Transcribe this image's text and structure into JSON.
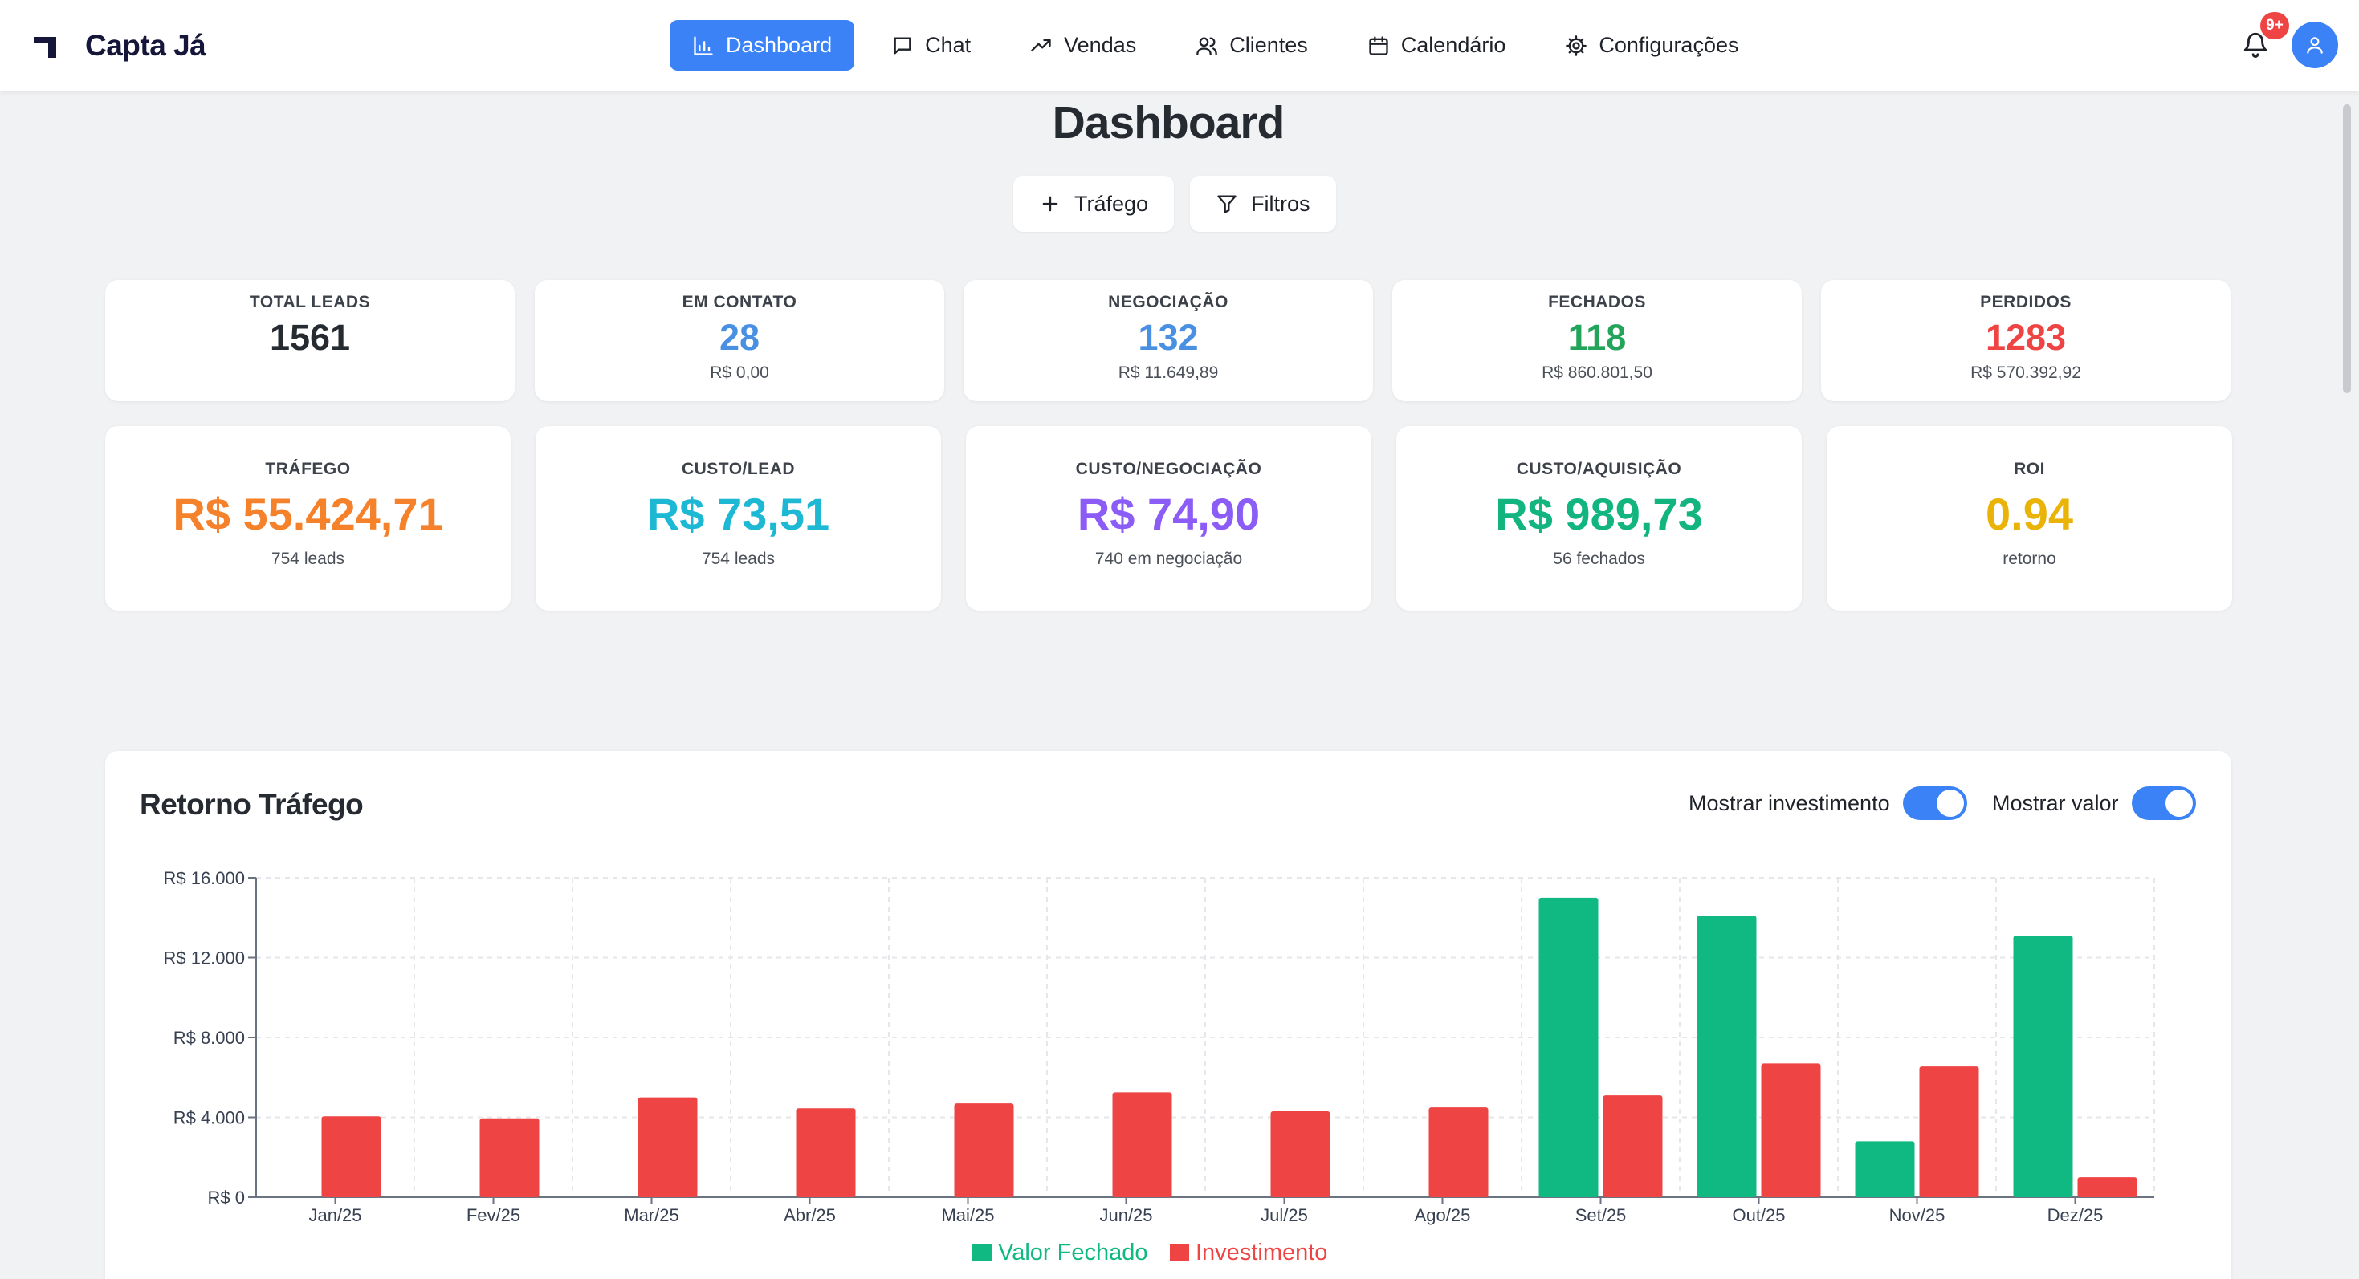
{
  "brand": {
    "name": "Capta Já"
  },
  "nav": {
    "items": [
      {
        "label": "Dashboard",
        "icon": "bar-chart-icon",
        "active": true
      },
      {
        "label": "Chat",
        "icon": "chat-icon"
      },
      {
        "label": "Vendas",
        "icon": "trending-up-icon"
      },
      {
        "label": "Clientes",
        "icon": "users-icon"
      },
      {
        "label": "Calendário",
        "icon": "calendar-icon"
      },
      {
        "label": "Configurações",
        "icon": "gear-icon"
      }
    ],
    "notifications": "9+"
  },
  "page": {
    "title": "Dashboard",
    "actions": {
      "traffic": "Tráfego",
      "filters": "Filtros"
    }
  },
  "stats": [
    {
      "label": "TOTAL LEADS",
      "value": "1561",
      "sub": "",
      "color": "#262a31"
    },
    {
      "label": "EM CONTATO",
      "value": "28",
      "sub": "R$ 0,00",
      "color": "#4a90e2"
    },
    {
      "label": "NEGOCIAÇÃO",
      "value": "132",
      "sub": "R$ 11.649,89",
      "color": "#4a90e2"
    },
    {
      "label": "FECHADOS",
      "value": "118",
      "sub": "R$ 860.801,50",
      "color": "#22a55b"
    },
    {
      "label": "PERDIDOS",
      "value": "1283",
      "sub": "R$ 570.392,92",
      "color": "#ef4444"
    }
  ],
  "metrics": [
    {
      "label": "TRÁFEGO",
      "value": "R$ 55.424,71",
      "sub": "754 leads",
      "color": "#f5812a"
    },
    {
      "label": "CUSTO/LEAD",
      "value": "R$ 73,51",
      "sub": "754 leads",
      "color": "#1cb8d4"
    },
    {
      "label": "CUSTO/NEGOCIAÇÃO",
      "value": "R$ 74,90",
      "sub": "740 em negociação",
      "color": "#8b5cf6"
    },
    {
      "label": "CUSTO/AQUISIÇÃO",
      "value": "R$ 989,73",
      "sub": "56 fechados",
      "color": "#12b57f"
    },
    {
      "label": "ROI",
      "value": "0.94",
      "sub": "retorno",
      "color": "#eab308"
    }
  ],
  "chart_panel": {
    "title": "Retorno Tráfego",
    "toggles": [
      {
        "label": "Mostrar investimento",
        "on": true
      },
      {
        "label": "Mostrar valor",
        "on": true
      }
    ]
  },
  "chart_data": {
    "type": "bar",
    "categories": [
      "Jan/25",
      "Fev/25",
      "Mar/25",
      "Abr/25",
      "Mai/25",
      "Jun/25",
      "Jul/25",
      "Ago/25",
      "Set/25",
      "Out/25",
      "Nov/25",
      "Dez/25"
    ],
    "series": [
      {
        "name": "Valor Fechado",
        "color": "#10b981",
        "values": [
          0,
          0,
          0,
          0,
          0,
          0,
          0,
          0,
          15000,
          14100,
          2800,
          13100
        ]
      },
      {
        "name": "Investimento",
        "color": "#ef4444",
        "values": [
          4050,
          3950,
          5000,
          4450,
          4700,
          5250,
          4300,
          4500,
          5100,
          6700,
          6550,
          1000
        ]
      }
    ],
    "yticks": [
      "R$ 0",
      "R$ 4.000",
      "R$ 8.000",
      "R$ 12.000",
      "R$ 16.000"
    ],
    "ylim": [
      0,
      16000
    ],
    "grid": true,
    "legend": "bottom-center"
  }
}
